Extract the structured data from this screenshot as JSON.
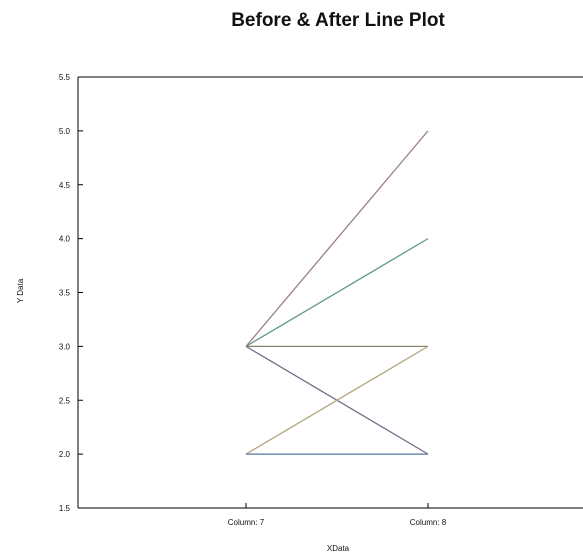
{
  "chart_data": {
    "type": "line",
    "title": "Before & After Line Plot",
    "xlabel": "XData",
    "ylabel": "Y Data",
    "categories": [
      "Column: 7",
      "Column: 8"
    ],
    "ylim": [
      1.5,
      5.5
    ],
    "yticks": [
      "1.5",
      "2.0",
      "2.5",
      "3.0",
      "3.5",
      "4.0",
      "4.5",
      "5.0",
      "5.5"
    ],
    "grid": false,
    "legend": "none",
    "series": [
      {
        "values": [
          3,
          5
        ],
        "color": "#9a7f83"
      },
      {
        "values": [
          3,
          4
        ],
        "color": "#5f9a7a"
      },
      {
        "values": [
          3,
          3
        ],
        "color": "#8a8670"
      },
      {
        "values": [
          3,
          2
        ],
        "color": "#7a6a8a"
      },
      {
        "values": [
          2,
          3
        ],
        "color": "#b3a37f"
      },
      {
        "values": [
          2,
          2
        ],
        "color": "#5577a6"
      }
    ]
  }
}
